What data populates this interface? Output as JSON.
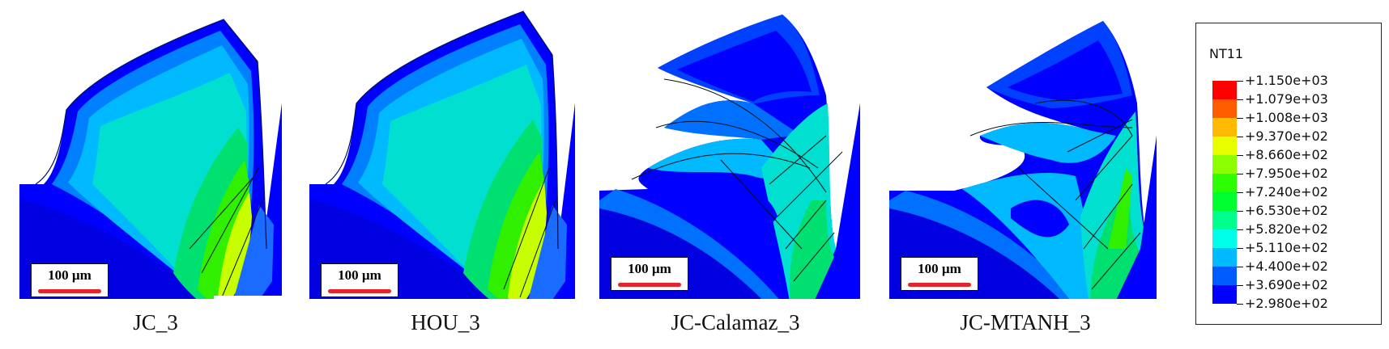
{
  "panels": [
    {
      "caption": "JC_3",
      "scale_label": "100 µm"
    },
    {
      "caption": "HOU_3",
      "scale_label": "100 µm"
    },
    {
      "caption": "JC-Calamaz_3",
      "scale_label": "100 µm"
    },
    {
      "caption": "JC-MTANH_3",
      "scale_label": "100 µm"
    }
  ],
  "legend": {
    "title": "NT11",
    "labels": [
      "+1.150e+03",
      "+1.079e+03",
      "+1.008e+03",
      "+9.370e+02",
      "+8.660e+02",
      "+7.950e+02",
      "+7.240e+02",
      "+6.530e+02",
      "+5.820e+02",
      "+5.110e+02",
      "+4.400e+02",
      "+3.690e+02",
      "+2.980e+02"
    ],
    "colors": [
      "#ff0000",
      "#ff5c00",
      "#ffb900",
      "#e9ff00",
      "#8cff00",
      "#2eff00",
      "#00ff2e",
      "#00ff8c",
      "#00ffe9",
      "#00b9ff",
      "#005cff",
      "#0000ff"
    ]
  }
}
